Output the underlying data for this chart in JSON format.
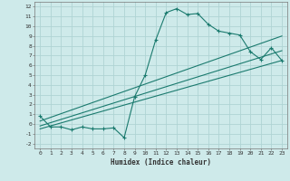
{
  "title": "",
  "xlabel": "Humidex (Indice chaleur)",
  "ylabel": "",
  "bg_color": "#ceeaea",
  "line_color": "#1a7a6e",
  "grid_color": "#afd4d4",
  "xlim": [
    -0.5,
    23.5
  ],
  "ylim": [
    -2.5,
    12.5
  ],
  "xticks": [
    0,
    1,
    2,
    3,
    4,
    5,
    6,
    7,
    8,
    9,
    10,
    11,
    12,
    13,
    14,
    15,
    16,
    17,
    18,
    19,
    20,
    21,
    22,
    23
  ],
  "yticks": [
    -2,
    -1,
    0,
    1,
    2,
    3,
    4,
    5,
    6,
    7,
    8,
    9,
    10,
    11,
    12
  ],
  "series_main_x": [
    0,
    1,
    2,
    3,
    4,
    5,
    6,
    7,
    8,
    9,
    10,
    11,
    12,
    13,
    14,
    15,
    16,
    17,
    18,
    19,
    20,
    21,
    22,
    23
  ],
  "series_main_y": [
    0.8,
    -0.3,
    -0.3,
    -0.6,
    -0.3,
    -0.5,
    -0.5,
    -0.4,
    -1.4,
    2.8,
    5.0,
    8.6,
    11.4,
    11.8,
    11.2,
    11.3,
    10.2,
    9.5,
    9.3,
    9.1,
    7.4,
    6.6,
    7.8,
    6.5
  ],
  "series_line1_x": [
    0,
    23
  ],
  "series_line1_y": [
    0.3,
    9.0
  ],
  "series_line2_x": [
    0,
    23
  ],
  "series_line2_y": [
    -0.2,
    7.5
  ],
  "series_line3_x": [
    0,
    23
  ],
  "series_line3_y": [
    -0.5,
    6.5
  ]
}
